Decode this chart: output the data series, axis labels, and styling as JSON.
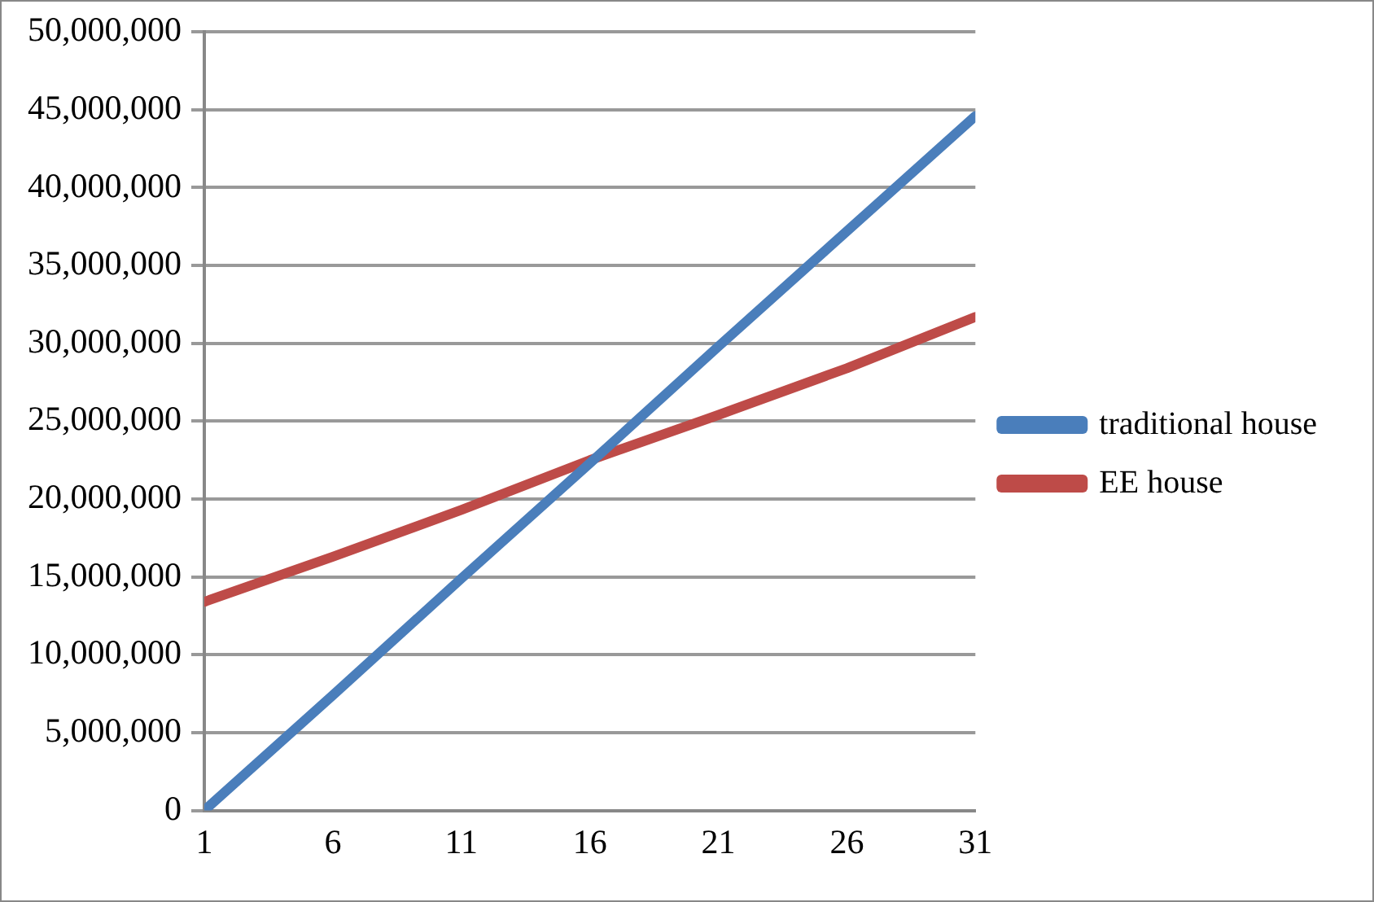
{
  "chart_data": {
    "type": "line",
    "x": [
      1,
      6,
      11,
      16,
      21,
      26,
      31
    ],
    "xlim": [
      1,
      31
    ],
    "xticks": [
      1,
      6,
      11,
      16,
      21,
      26,
      31
    ],
    "ylim": [
      0,
      50000000
    ],
    "yticks": [
      {
        "value": 0,
        "label": "0"
      },
      {
        "value": 5000000,
        "label": "5,000,000"
      },
      {
        "value": 10000000,
        "label": "10,000,000"
      },
      {
        "value": 15000000,
        "label": "15,000,000"
      },
      {
        "value": 20000000,
        "label": "20,000,000"
      },
      {
        "value": 25000000,
        "label": "25,000,000"
      },
      {
        "value": 30000000,
        "label": "30,000,000"
      },
      {
        "value": 35000000,
        "label": "35,000,000"
      },
      {
        "value": 40000000,
        "label": "40,000,000"
      },
      {
        "value": 45000000,
        "label": "45,000,000"
      },
      {
        "value": 50000000,
        "label": "50,000,000"
      }
    ],
    "grid": "y",
    "legend": "right",
    "marker": "none",
    "line_style": "solid",
    "series": [
      {
        "name": "traditional house",
        "color": "#4a7ebb",
        "values": [
          0,
          7400000,
          14900000,
          22300000,
          29800000,
          37200000,
          44600000
        ]
      },
      {
        "name": "EE house",
        "color": "#be4b48",
        "values": [
          13400000,
          16300000,
          19300000,
          22500000,
          25400000,
          28400000,
          31700000
        ]
      }
    ]
  }
}
